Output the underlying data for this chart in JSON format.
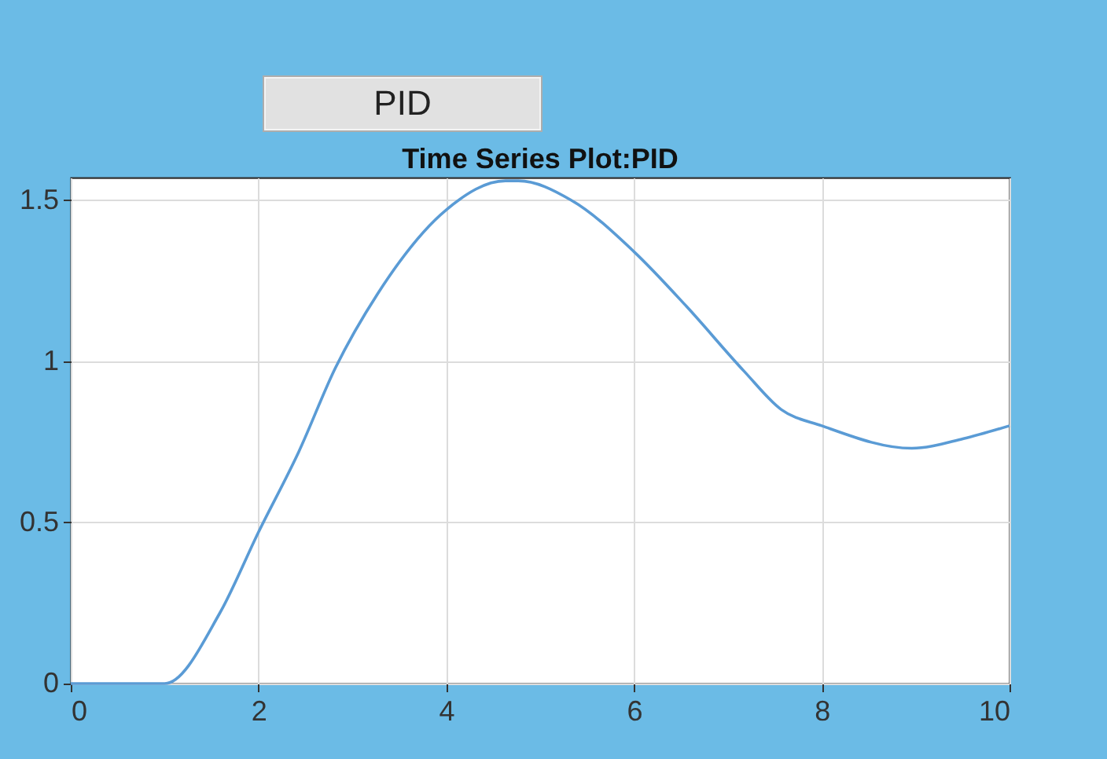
{
  "chart_data": {
    "type": "line",
    "title": "Time Series Plot:PID",
    "annotations": [
      "PID"
    ],
    "x": [
      0,
      1.0,
      1.59,
      2.0,
      2.43,
      2.82,
      3.27,
      4.0,
      4.63,
      4.77,
      5.33,
      6.0,
      6.56,
      7.17,
      7.57,
      8.0,
      8.96,
      9.51,
      10
    ],
    "series": [
      {
        "color": "#5a9bd5",
        "values": [
          0,
          0,
          0.22,
          0.47,
          0.72,
          0.98,
          1.21,
          1.47,
          1.56,
          1.56,
          1.5,
          1.34,
          1.17,
          0.97,
          0.85,
          0.8,
          0.73,
          0.76,
          0.8
        ]
      }
    ],
    "xlim": [
      0,
      10
    ],
    "xticks": [
      0,
      2,
      4,
      6,
      8,
      10
    ],
    "ylim": [
      0,
      1.57
    ],
    "yticks": [
      0,
      0.5,
      1,
      1.5
    ],
    "grid": true
  }
}
